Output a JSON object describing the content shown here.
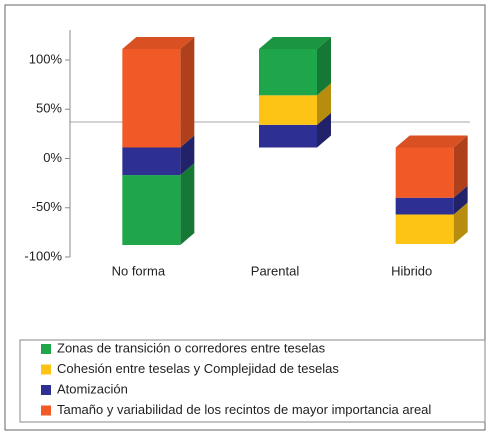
{
  "chart_data": {
    "type": "bar",
    "stacked": true,
    "categories": [
      "No forma",
      "Parental",
      "Hibrido"
    ],
    "series": [
      {
        "name": "Zonas de transición o corredores entre teselas",
        "color": "#1fa64a",
        "values": [
          -71,
          47,
          0
        ]
      },
      {
        "name": "Cohesión entre teselas y Complejidad de teselas",
        "color": "#fdc415",
        "values": [
          0,
          30,
          -30
        ]
      },
      {
        "name": "Atomización",
        "color": "#2e2f92",
        "values": [
          -28,
          23,
          -17
        ]
      },
      {
        "name": "Tamaño y variabilidad de los recintos de mayor importancia areal",
        "color": "#f15a27",
        "values": [
          100,
          0,
          -51
        ]
      }
    ],
    "ylim": [
      -100,
      100
    ],
    "yticks": [
      {
        "value": 100,
        "label": "100%"
      },
      {
        "value": 50,
        "label": "50%"
      },
      {
        "value": 0,
        "label": "0%"
      },
      {
        "value": -50,
        "label": "-50%"
      },
      {
        "value": -100,
        "label": "-100%"
      }
    ],
    "legend": "bottom"
  }
}
